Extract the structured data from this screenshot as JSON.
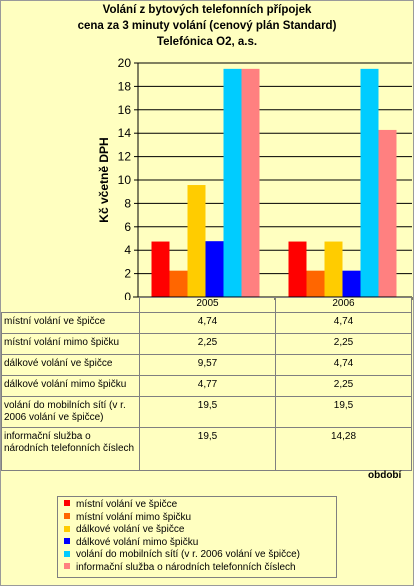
{
  "chart_data": {
    "type": "bar",
    "title": "Volání z bytových telefonních přípojek",
    "subtitle_lines": [
      "cena za 3 minuty volání (cenový plán Standard)",
      "Telefónica O2, a.s."
    ],
    "ylabel": "Kč včetně DPH",
    "xlabel": "období",
    "ylim": [
      0,
      20
    ],
    "yticks": [
      "0",
      "2",
      "4",
      "6",
      "8",
      "10",
      "12",
      "14",
      "16",
      "18",
      "20"
    ],
    "categories": [
      "2005",
      "2006"
    ],
    "legend_position": "bottom",
    "series": [
      {
        "name": "místní volání ve špičce",
        "color": "#FF0000",
        "values": [
          4.74,
          4.74
        ],
        "display": [
          "4,74",
          "4,74"
        ]
      },
      {
        "name": "místní volání mimo špičku",
        "color": "#FF6600",
        "values": [
          2.25,
          2.25
        ],
        "display": [
          "2,25",
          "2,25"
        ]
      },
      {
        "name": "dálkové volání ve špičce",
        "color": "#FFCC00",
        "values": [
          9.57,
          4.74
        ],
        "display": [
          "9,57",
          "4,74"
        ]
      },
      {
        "name": "dálkové volání mimo špičku",
        "color": "#0000FF",
        "values": [
          4.77,
          2.25
        ],
        "display": [
          "4,77",
          "2,25"
        ]
      },
      {
        "name": "volání do mobilních sítí (v r. 2006 volání ve špičce)",
        "color": "#00CCFF",
        "values": [
          19.5,
          19.5
        ],
        "display": [
          "19,5",
          "19,5"
        ]
      },
      {
        "name": "informační služba o národních telefonních číslech",
        "color": "#FF8080",
        "values": [
          19.5,
          14.28
        ],
        "display": [
          "19,5",
          "14,28"
        ]
      }
    ]
  }
}
